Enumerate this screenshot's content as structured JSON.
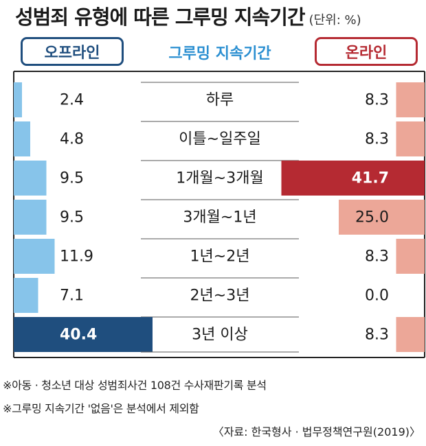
{
  "header": {
    "title": "성범죄 유형에 따른 그루밍 지속기간",
    "unit": "(단위: %)"
  },
  "chart_data": {
    "type": "bar",
    "center_label": "그루밍 지속기간",
    "categories": [
      "하루",
      "이틀~일주일",
      "1개월~3개월",
      "3개월~1년",
      "1년~2년",
      "2년~3년",
      "3년 이상"
    ],
    "series": [
      {
        "name": "오프라인",
        "values": [
          2.4,
          4.8,
          9.5,
          9.5,
          11.9,
          7.1,
          40.4
        ]
      },
      {
        "name": "온라인",
        "values": [
          8.3,
          8.3,
          41.7,
          25.0,
          8.3,
          0.0,
          8.3
        ]
      }
    ],
    "value_labels": {
      "offline": [
        "2.4",
        "4.8",
        "9.5",
        "9.5",
        "11.9",
        "7.1",
        "40.4"
      ],
      "online": [
        "8.3",
        "8.3",
        "41.7",
        "25.0",
        "8.3",
        "0.0",
        "8.3"
      ]
    },
    "highlight": {
      "offline": 6,
      "online": 2
    },
    "colors": {
      "offline": "#87c4ea",
      "offline_highlight": "#1f4e7e",
      "online": "#eca798",
      "online_highlight": "#b52a32",
      "center_label": "#2b8fd1"
    }
  },
  "footnotes": [
    "※아동 · 청소년 대상 성범죄사건 108건 수사재판기록 분석",
    "※그루밍 지속기간 '없음'은 분석에서 제외함"
  ],
  "source": "〈자료: 한국형사 · 법무정책연구원(2019)〉"
}
